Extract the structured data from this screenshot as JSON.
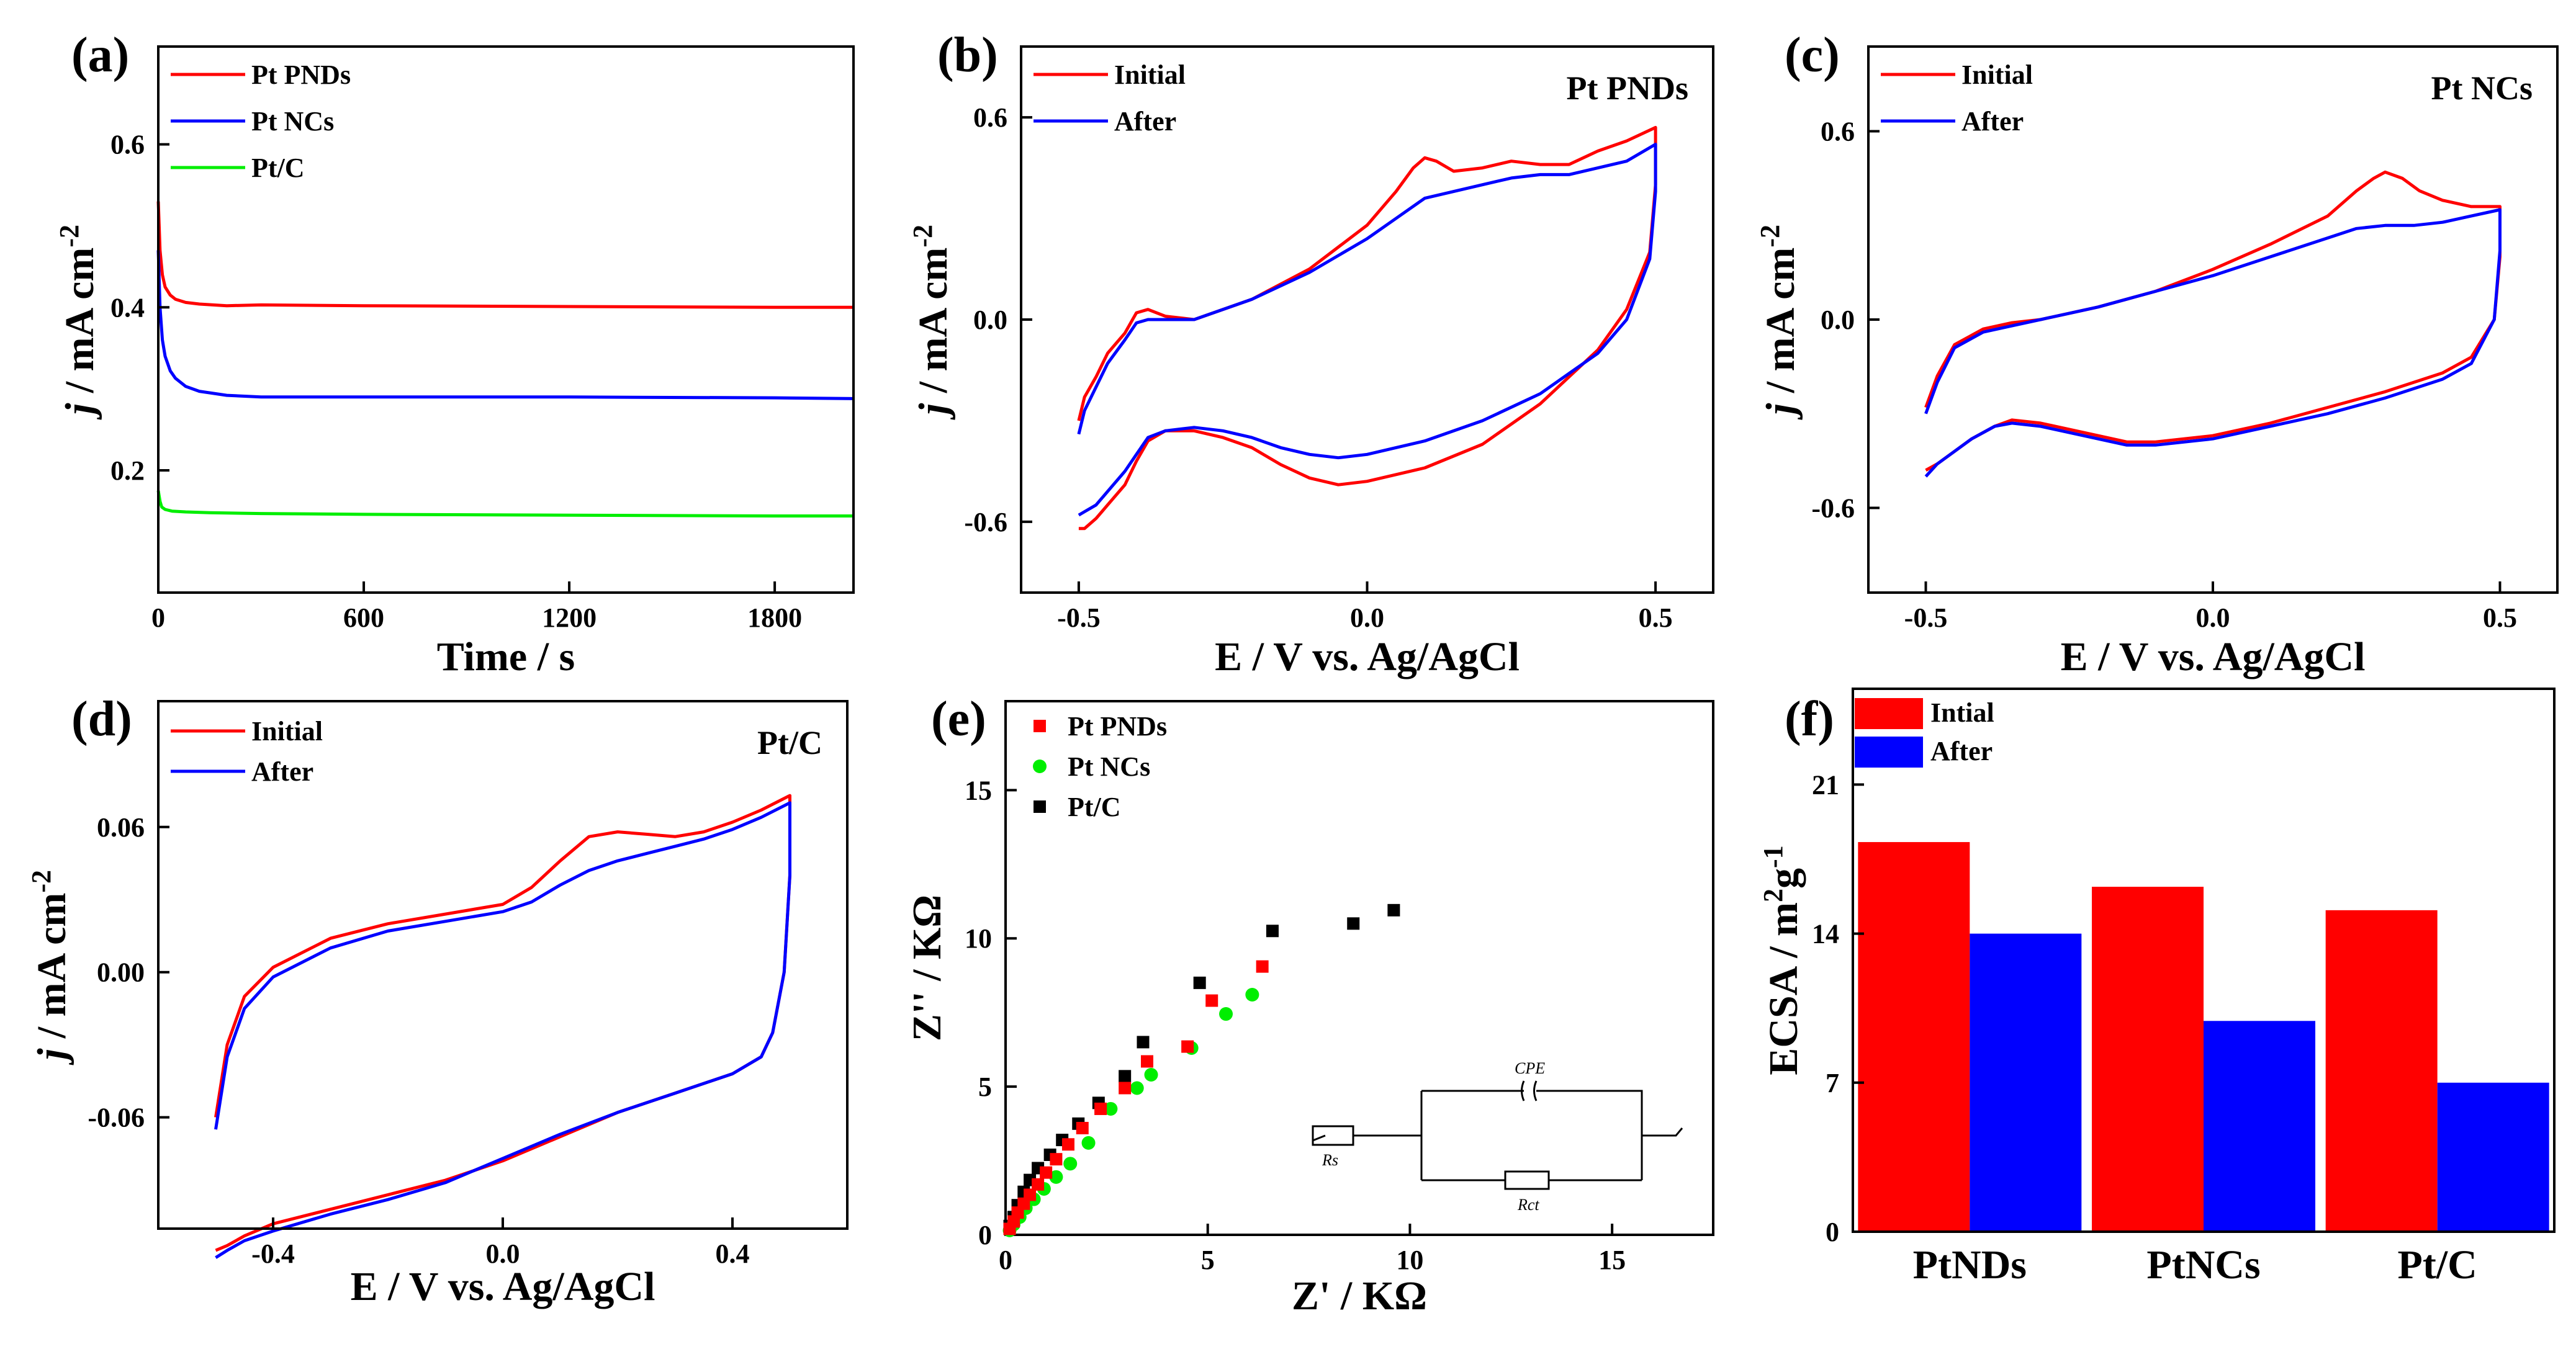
{
  "figure": {
    "panel_labels": [
      "(a)",
      "(b)",
      "(c)",
      "(d)",
      "(e)",
      "(f)"
    ]
  },
  "chart_data": [
    {
      "id": "a",
      "type": "line",
      "panel_label": "(a)",
      "xlabel": "Time / s",
      "ylabel": "j / mA cm-2",
      "ylabel_italic": "j",
      "ylabel_rest": " / mA cm",
      "ylabel_sup": "-2",
      "xlim": [
        0,
        2030
      ],
      "ylim": [
        0.05,
        0.72
      ],
      "xticks": [
        0,
        600,
        1200,
        1800
      ],
      "xtick_labels": [
        "0",
        "600",
        "1200",
        "1800"
      ],
      "yticks": [
        0.2,
        0.4,
        0.6
      ],
      "ytick_labels": [
        "0.2",
        "0.4",
        "0.6"
      ],
      "series": [
        {
          "name": "Pt PNDs",
          "color": "#ff0000",
          "x": [
            0,
            5,
            12,
            20,
            35,
            50,
            80,
            120,
            200,
            300,
            600,
            1200,
            1800,
            2030
          ],
          "y": [
            0.53,
            0.47,
            0.44,
            0.425,
            0.415,
            0.41,
            0.406,
            0.404,
            0.402,
            0.403,
            0.402,
            0.401,
            0.4,
            0.4
          ]
        },
        {
          "name": "Pt NCs",
          "color": "#0000ff",
          "x": [
            0,
            5,
            12,
            20,
            35,
            50,
            80,
            120,
            200,
            300,
            600,
            1200,
            1800,
            2030
          ],
          "y": [
            0.47,
            0.4,
            0.36,
            0.34,
            0.322,
            0.313,
            0.303,
            0.297,
            0.292,
            0.29,
            0.29,
            0.29,
            0.289,
            0.288
          ]
        },
        {
          "name": "Pt/C",
          "color": "#00ee00",
          "x": [
            0,
            5,
            10,
            20,
            40,
            80,
            150,
            300,
            600,
            1200,
            1800,
            2030
          ],
          "y": [
            0.175,
            0.162,
            0.155,
            0.152,
            0.15,
            0.149,
            0.148,
            0.147,
            0.146,
            0.145,
            0.144,
            0.144
          ]
        }
      ]
    },
    {
      "id": "b",
      "type": "line",
      "panel_label": "(b)",
      "inner_title": "Pt PNDs",
      "xlabel": "E / V vs. Ag/AgCl",
      "ylabel": "j / mA cm-2",
      "ylabel_italic": "j",
      "ylabel_rest": " / mA cm",
      "ylabel_sup": "-2",
      "xlim": [
        -0.6,
        0.6
      ],
      "ylim": [
        -0.81,
        0.81
      ],
      "xticks": [
        -0.5,
        0,
        0.5
      ],
      "xtick_labels": [
        "-0.5",
        "0.0",
        "0.5"
      ],
      "yticks": [
        -0.6,
        0,
        0.6
      ],
      "ytick_labels": [
        "-0.6",
        "0.0",
        "0.6"
      ],
      "series": [
        {
          "name": "Initial",
          "color": "#ff0000",
          "x": [
            -0.5,
            -0.49,
            -0.47,
            -0.45,
            -0.42,
            -0.4,
            -0.38,
            -0.35,
            -0.3,
            -0.2,
            -0.1,
            0.0,
            0.05,
            0.08,
            0.1,
            0.12,
            0.15,
            0.2,
            0.25,
            0.3,
            0.35,
            0.4,
            0.45,
            0.5,
            0.5,
            0.49,
            0.45,
            0.4,
            0.3,
            0.2,
            0.1,
            0.0,
            -0.05,
            -0.1,
            -0.15,
            -0.2,
            -0.25,
            -0.3,
            -0.35,
            -0.38,
            -0.4,
            -0.42,
            -0.45,
            -0.47,
            -0.49,
            -0.5
          ],
          "y": [
            -0.3,
            -0.23,
            -0.17,
            -0.1,
            -0.04,
            0.02,
            0.03,
            0.01,
            0.0,
            0.06,
            0.15,
            0.28,
            0.38,
            0.45,
            0.48,
            0.47,
            0.44,
            0.45,
            0.47,
            0.46,
            0.46,
            0.5,
            0.53,
            0.57,
            0.4,
            0.2,
            0.03,
            -0.09,
            -0.25,
            -0.37,
            -0.44,
            -0.48,
            -0.49,
            -0.47,
            -0.43,
            -0.38,
            -0.35,
            -0.33,
            -0.33,
            -0.36,
            -0.42,
            -0.49,
            -0.55,
            -0.59,
            -0.62,
            -0.62
          ]
        },
        {
          "name": "After",
          "color": "#0000ff",
          "x": [
            -0.5,
            -0.49,
            -0.47,
            -0.45,
            -0.42,
            -0.4,
            -0.38,
            -0.35,
            -0.3,
            -0.2,
            -0.1,
            0.0,
            0.05,
            0.1,
            0.15,
            0.2,
            0.25,
            0.3,
            0.35,
            0.4,
            0.45,
            0.5,
            0.5,
            0.49,
            0.45,
            0.4,
            0.3,
            0.2,
            0.1,
            0.0,
            -0.05,
            -0.1,
            -0.15,
            -0.2,
            -0.25,
            -0.3,
            -0.35,
            -0.38,
            -0.4,
            -0.42,
            -0.45,
            -0.47,
            -0.49,
            -0.5
          ],
          "y": [
            -0.34,
            -0.27,
            -0.2,
            -0.13,
            -0.06,
            -0.01,
            0.0,
            0.0,
            0.0,
            0.06,
            0.14,
            0.24,
            0.3,
            0.36,
            0.38,
            0.4,
            0.42,
            0.43,
            0.43,
            0.45,
            0.47,
            0.52,
            0.38,
            0.18,
            0.0,
            -0.1,
            -0.22,
            -0.3,
            -0.36,
            -0.4,
            -0.41,
            -0.4,
            -0.38,
            -0.35,
            -0.33,
            -0.32,
            -0.33,
            -0.35,
            -0.4,
            -0.45,
            -0.51,
            -0.55,
            -0.57,
            -0.58
          ]
        }
      ]
    },
    {
      "id": "c",
      "type": "line",
      "panel_label": "(c)",
      "inner_title": "Pt NCs",
      "xlabel": "E / V vs. Ag/AgCl",
      "ylabel": "j / mA cm-2",
      "ylabel_italic": "j",
      "ylabel_rest": " / mA cm",
      "ylabel_sup": "-2",
      "xlim": [
        -0.6,
        0.6
      ],
      "ylim": [
        -0.87,
        0.87
      ],
      "xticks": [
        -0.5,
        0,
        0.5
      ],
      "xtick_labels": [
        "-0.5",
        "0.0",
        "0.5"
      ],
      "yticks": [
        -0.6,
        0,
        0.6
      ],
      "ytick_labels": [
        "-0.6",
        "0.0",
        "0.6"
      ],
      "series": [
        {
          "name": "Initial",
          "color": "#ff0000",
          "x": [
            -0.5,
            -0.48,
            -0.45,
            -0.4,
            -0.35,
            -0.3,
            -0.2,
            -0.1,
            0.0,
            0.1,
            0.2,
            0.25,
            0.28,
            0.3,
            0.33,
            0.36,
            0.4,
            0.45,
            0.5,
            0.5,
            0.49,
            0.45,
            0.4,
            0.3,
            0.2,
            0.1,
            0.0,
            -0.1,
            -0.15,
            -0.2,
            -0.3,
            -0.35,
            -0.38,
            -0.42,
            -0.45,
            -0.48,
            -0.5
          ],
          "y": [
            -0.28,
            -0.18,
            -0.08,
            -0.03,
            -0.01,
            0.0,
            0.04,
            0.09,
            0.16,
            0.24,
            0.33,
            0.41,
            0.45,
            0.47,
            0.45,
            0.41,
            0.38,
            0.36,
            0.36,
            0.2,
            0.0,
            -0.12,
            -0.17,
            -0.23,
            -0.28,
            -0.33,
            -0.37,
            -0.39,
            -0.39,
            -0.37,
            -0.33,
            -0.32,
            -0.34,
            -0.38,
            -0.42,
            -0.46,
            -0.48
          ]
        },
        {
          "name": "After",
          "color": "#0000ff",
          "x": [
            -0.5,
            -0.48,
            -0.45,
            -0.4,
            -0.35,
            -0.3,
            -0.2,
            -0.1,
            0.0,
            0.1,
            0.2,
            0.25,
            0.3,
            0.35,
            0.4,
            0.45,
            0.5,
            0.5,
            0.49,
            0.45,
            0.4,
            0.3,
            0.2,
            0.1,
            0.0,
            -0.1,
            -0.15,
            -0.2,
            -0.3,
            -0.35,
            -0.38,
            -0.42,
            -0.45,
            -0.48,
            -0.5
          ],
          "y": [
            -0.3,
            -0.2,
            -0.09,
            -0.04,
            -0.02,
            0.0,
            0.04,
            0.09,
            0.14,
            0.2,
            0.26,
            0.29,
            0.3,
            0.3,
            0.31,
            0.33,
            0.35,
            0.22,
            0.0,
            -0.14,
            -0.19,
            -0.25,
            -0.3,
            -0.34,
            -0.38,
            -0.4,
            -0.4,
            -0.38,
            -0.34,
            -0.33,
            -0.34,
            -0.38,
            -0.42,
            -0.46,
            -0.5
          ]
        }
      ]
    },
    {
      "id": "d",
      "type": "line",
      "panel_label": "(d)",
      "inner_title": "Pt/C",
      "xlabel": "E / V vs. Ag/AgCl",
      "ylabel": "j / mA cm-2",
      "ylabel_italic": "j",
      "ylabel_rest": " / mA cm",
      "ylabel_sup": "-2",
      "xlim": [
        -0.6,
        0.6
      ],
      "ylim": [
        -0.106,
        0.112
      ],
      "xticks": [
        -0.4,
        0,
        0.4
      ],
      "xtick_labels": [
        "-0.4",
        "0.0",
        "0.4"
      ],
      "yticks": [
        -0.06,
        0,
        0.06
      ],
      "ytick_labels": [
        "-0.06",
        "0.00",
        "0.06"
      ],
      "series": [
        {
          "name": "Initial",
          "color": "#ff0000",
          "x": [
            -0.5,
            -0.48,
            -0.45,
            -0.4,
            -0.3,
            -0.2,
            -0.1,
            0.0,
            0.05,
            0.1,
            0.15,
            0.2,
            0.25,
            0.3,
            0.35,
            0.4,
            0.45,
            0.5,
            0.5,
            0.49,
            0.47,
            0.45,
            0.4,
            0.3,
            0.2,
            0.1,
            0.0,
            -0.1,
            -0.2,
            -0.3,
            -0.4,
            -0.45,
            -0.48,
            -0.5
          ],
          "y": [
            -0.06,
            -0.03,
            -0.01,
            0.002,
            0.014,
            0.02,
            0.024,
            0.028,
            0.035,
            0.046,
            0.056,
            0.058,
            0.057,
            0.056,
            0.058,
            0.062,
            0.067,
            0.073,
            0.04,
            0.0,
            -0.025,
            -0.035,
            -0.042,
            -0.05,
            -0.058,
            -0.068,
            -0.078,
            -0.086,
            -0.092,
            -0.098,
            -0.104,
            -0.109,
            -0.113,
            -0.115
          ]
        },
        {
          "name": "After",
          "color": "#0000ff",
          "x": [
            -0.5,
            -0.48,
            -0.45,
            -0.4,
            -0.3,
            -0.2,
            -0.1,
            0.0,
            0.05,
            0.1,
            0.15,
            0.2,
            0.25,
            0.3,
            0.35,
            0.4,
            0.45,
            0.5,
            0.5,
            0.49,
            0.47,
            0.45,
            0.4,
            0.3,
            0.2,
            0.1,
            0.0,
            -0.1,
            -0.2,
            -0.3,
            -0.4,
            -0.45,
            -0.48,
            -0.5
          ],
          "y": [
            -0.065,
            -0.035,
            -0.015,
            -0.002,
            0.01,
            0.017,
            0.021,
            0.025,
            0.029,
            0.036,
            0.042,
            0.046,
            0.049,
            0.052,
            0.055,
            0.059,
            0.064,
            0.07,
            0.04,
            0.0,
            -0.025,
            -0.035,
            -0.042,
            -0.05,
            -0.058,
            -0.067,
            -0.077,
            -0.087,
            -0.094,
            -0.1,
            -0.107,
            -0.111,
            -0.115,
            -0.118
          ]
        }
      ]
    },
    {
      "id": "e",
      "type": "scatter",
      "panel_label": "(e)",
      "xlabel": "Z' / KΩ",
      "ylabel": "Z'' / KΩ",
      "xlim": [
        0,
        17.5
      ],
      "ylim": [
        0,
        18
      ],
      "xticks": [
        0,
        5,
        10,
        15
      ],
      "xtick_labels": [
        "0",
        "5",
        "10",
        "15"
      ],
      "yticks": [
        0,
        5,
        10,
        15
      ],
      "ytick_labels": [
        "0",
        "5",
        "10",
        "15"
      ],
      "series": [
        {
          "name": "Pt PNDs",
          "color": "#ff0000",
          "x": [
            0.1,
            0.2,
            0.3,
            0.45,
            0.6,
            0.8,
            1.0,
            1.25,
            1.55,
            1.9,
            2.35,
            2.95,
            3.5,
            4.5,
            5.1,
            6.35
          ],
          "y": [
            0.2,
            0.45,
            0.75,
            1.05,
            1.35,
            1.7,
            2.1,
            2.55,
            3.05,
            3.6,
            4.25,
            4.95,
            5.85,
            6.35,
            7.9,
            9.05
          ]
        },
        {
          "name": "Pt NCs",
          "color": "#00ee00",
          "x": [
            0.1,
            0.2,
            0.35,
            0.5,
            0.7,
            0.95,
            1.25,
            1.6,
            2.05,
            2.6,
            3.25,
            3.6,
            4.6,
            5.45,
            6.1
          ],
          "y": [
            0.15,
            0.35,
            0.6,
            0.9,
            1.2,
            1.55,
            1.95,
            2.4,
            3.1,
            4.25,
            4.95,
            5.4,
            6.3,
            7.45,
            8.1
          ]
        },
        {
          "name": "Pt/C",
          "color": "#000000",
          "x": [
            0.1,
            0.2,
            0.3,
            0.45,
            0.6,
            0.8,
            1.1,
            1.4,
            1.8,
            2.3,
            2.95,
            3.4,
            4.8,
            6.6,
            8.6,
            9.6
          ],
          "y": [
            0.3,
            0.6,
            1.0,
            1.45,
            1.85,
            2.25,
            2.7,
            3.2,
            3.75,
            4.45,
            5.35,
            6.5,
            8.5,
            10.25,
            10.5,
            10.95
          ]
        }
      ],
      "inset": {
        "labels": [
          "Rs",
          "CPE",
          "Rct"
        ]
      }
    },
    {
      "id": "f",
      "type": "bar",
      "panel_label": "(f)",
      "xlabel": "",
      "ylabel": "ECSA / m2g-1",
      "ylabel_parts": [
        "ECSA / m",
        "2",
        "g",
        "-1"
      ],
      "categories": [
        "PtNDs",
        "PtNCs",
        "Pt/C"
      ],
      "ylim": [
        0,
        25.5
      ],
      "yticks": [
        0,
        7,
        14,
        21
      ],
      "ytick_labels": [
        "0",
        "7",
        "14",
        "21"
      ],
      "series": [
        {
          "name": "Intial",
          "color": "#ff0000",
          "values": [
            18.3,
            16.2,
            15.1
          ]
        },
        {
          "name": "After",
          "color": "#0000ff",
          "values": [
            14.0,
            9.9,
            7.0
          ]
        }
      ]
    }
  ]
}
